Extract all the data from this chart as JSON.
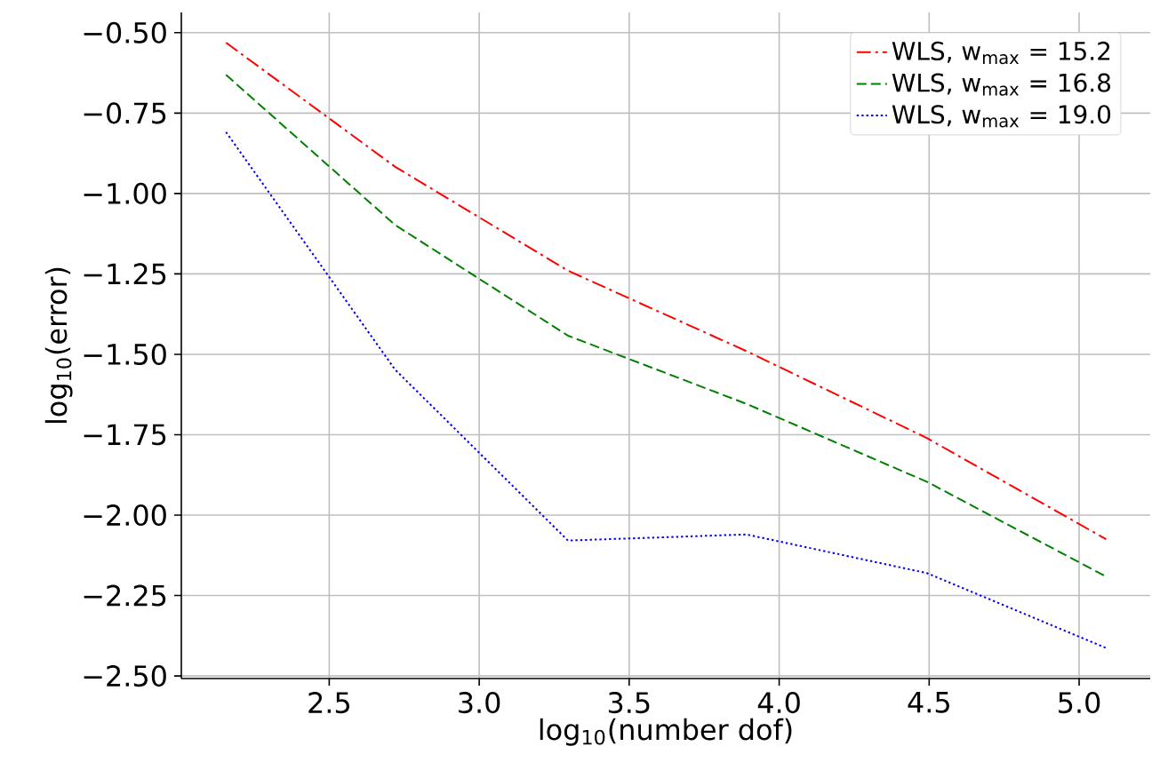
{
  "chart_data": {
    "type": "line",
    "xlabel": "log$_{10}$(number dof)",
    "ylabel": "log$_{10}$(error)",
    "xlim": [
      2.007,
      5.237
    ],
    "ylim": [
      -2.508,
      -0.437
    ],
    "xticks": [
      {
        "value": 2.5,
        "label": "2.5"
      },
      {
        "value": 3.0,
        "label": "3.0"
      },
      {
        "value": 3.5,
        "label": "3.5"
      },
      {
        "value": 4.0,
        "label": "4.0"
      },
      {
        "value": 4.5,
        "label": "4.5"
      },
      {
        "value": 5.0,
        "label": "5.0"
      }
    ],
    "yticks": [
      {
        "value": -2.5,
        "label": "−2.50"
      },
      {
        "value": -2.25,
        "label": "−2.25"
      },
      {
        "value": -2.0,
        "label": "−2.00"
      },
      {
        "value": -1.75,
        "label": "−1.75"
      },
      {
        "value": -1.5,
        "label": "−1.50"
      },
      {
        "value": -1.25,
        "label": "−1.25"
      },
      {
        "value": -1.0,
        "label": "−1.00"
      },
      {
        "value": -0.75,
        "label": "−0.75"
      },
      {
        "value": -0.5,
        "label": "−0.50"
      }
    ],
    "x": [
      2.156,
      2.72,
      3.296,
      3.891,
      4.492,
      5.09
    ],
    "series": [
      {
        "name": "WLS, w$_{max}$ = 15.2",
        "color": "#ff0000",
        "line_style": "dashdot",
        "values": [
          -0.531,
          -0.917,
          -1.24,
          -1.49,
          -1.76,
          -2.075
        ]
      },
      {
        "name": "WLS, w$_{max}$ = 16.8",
        "color": "#008000",
        "line_style": "dashed",
        "values": [
          -0.631,
          -1.098,
          -1.442,
          -1.654,
          -1.896,
          -2.191
        ]
      },
      {
        "name": "WLS, w$_{max}$ = 19.0",
        "color": "#0000ff",
        "line_style": "dotted",
        "values": [
          -0.809,
          -1.548,
          -2.079,
          -2.06,
          -2.18,
          -2.413
        ]
      }
    ],
    "grid": true,
    "legend": "top right",
    "marker": "none"
  }
}
